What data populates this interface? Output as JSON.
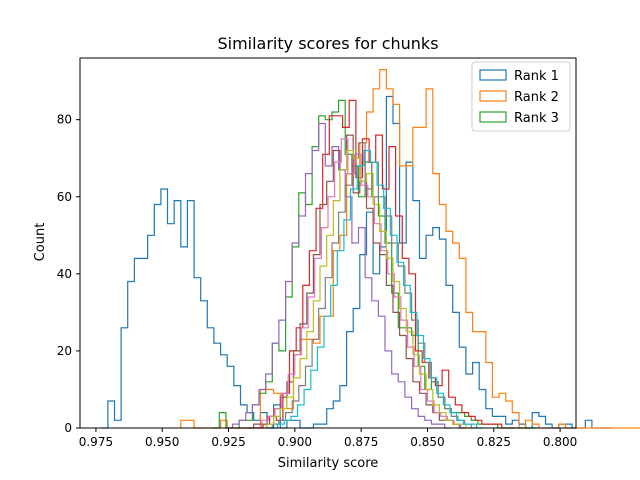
{
  "chart_data": {
    "type": "histogram",
    "title": "Similarity scores for chunks",
    "xlabel": "Similarity score",
    "ylabel": "Count",
    "x_inverted": true,
    "xlim": [
      0.981,
      0.794
    ],
    "ylim": [
      0,
      96
    ],
    "xticks": [
      0.975,
      0.95,
      0.925,
      0.9,
      0.875,
      0.85,
      0.825,
      0.8
    ],
    "xtick_labels": [
      "0.975",
      "0.950",
      "0.925",
      "0.900",
      "0.875",
      "0.850",
      "0.825",
      "0.800"
    ],
    "yticks": [
      0,
      20,
      40,
      60,
      80
    ],
    "ytick_labels": [
      "0",
      "20",
      "40",
      "60",
      "80"
    ],
    "legend": {
      "placement": "top-right",
      "entries": [
        {
          "name": "Rank 1",
          "color": "#1f77b4"
        },
        {
          "name": "Rank 2",
          "color": "#ff7f0e"
        },
        {
          "name": "Rank 3",
          "color": "#2ca02c"
        }
      ]
    },
    "series": [
      {
        "name": "Rank 1",
        "color": "#1f77b4",
        "x_start": 0.973,
        "bin_width": 0.0025,
        "counts": [
          0,
          7,
          2,
          26,
          38,
          44,
          44,
          50,
          58,
          62,
          53,
          59,
          47,
          59,
          39,
          33,
          26,
          22,
          19,
          16,
          11,
          6,
          4,
          2,
          4,
          0,
          6,
          0,
          2,
          2,
          0,
          0,
          1,
          1,
          5,
          7,
          11,
          25,
          31,
          45,
          56,
          40,
          47,
          86,
          79,
          48,
          69,
          59,
          44,
          50,
          52,
          49,
          37,
          30,
          21,
          14,
          17,
          10,
          5,
          3,
          3,
          1,
          2,
          1,
          0,
          4,
          3,
          1,
          0,
          1,
          1,
          0,
          0,
          2,
          0,
          0,
          0
        ]
      },
      {
        "name": "Rank 2",
        "color": "#ff7f0e",
        "x_start": 0.943,
        "bin_width": 0.0025,
        "counts": [
          2,
          2,
          0,
          0,
          0,
          0,
          2,
          0,
          0,
          0,
          0,
          0,
          10,
          10,
          9,
          8,
          5,
          19,
          23,
          23,
          22,
          29,
          29,
          46,
          50,
          66,
          66,
          74,
          82,
          88,
          93,
          88,
          84,
          68,
          68,
          78,
          78,
          88,
          66,
          58,
          51,
          48,
          44,
          30,
          25,
          25,
          17,
          8,
          9,
          7,
          4,
          0,
          2,
          1,
          0,
          0,
          0,
          1,
          0,
          0,
          0,
          0,
          0,
          0,
          0,
          0,
          0,
          0,
          0,
          0,
          0,
          0
        ]
      },
      {
        "name": "Rank 3",
        "color": "#2ca02c",
        "x_start": 0.931,
        "bin_width": 0.0025,
        "counts": [
          0,
          4,
          0,
          0,
          2,
          2,
          6,
          9,
          12,
          22,
          20,
          34,
          47,
          61,
          58,
          73,
          81,
          80,
          82,
          85,
          71,
          68,
          60,
          69,
          60,
          55,
          48,
          35,
          26,
          26,
          24,
          16,
          10,
          12,
          8,
          5,
          4,
          4,
          3,
          2,
          1,
          1,
          1,
          0,
          0,
          0,
          0,
          0,
          0
        ]
      },
      {
        "name": "",
        "color": "#d62728",
        "x_start": 0.922,
        "bin_width": 0.0025,
        "counts": [
          0,
          0,
          0,
          0,
          1,
          3,
          2,
          9,
          20,
          26,
          37,
          46,
          57,
          71,
          81,
          81,
          78,
          85,
          65,
          75,
          69,
          76,
          62,
          73,
          55,
          44,
          40,
          20,
          17,
          13,
          11,
          15,
          8,
          6,
          4,
          3,
          2,
          1,
          1,
          1,
          0,
          0
        ]
      },
      {
        "name": "",
        "color": "#9467bd",
        "x_start": 0.926,
        "bin_width": 0.0025,
        "counts": [
          0,
          1,
          2,
          4,
          6,
          10,
          14,
          22,
          28,
          38,
          48,
          55,
          66,
          72,
          79,
          68,
          73,
          67,
          60,
          48,
          52,
          39,
          33,
          29,
          20,
          14,
          12,
          8,
          5,
          3,
          2,
          1,
          1,
          0
        ]
      },
      {
        "name": "",
        "color": "#8c564b",
        "x_start": 0.918,
        "bin_width": 0.0025,
        "counts": [
          0,
          1,
          1,
          3,
          5,
          8,
          12,
          20,
          27,
          35,
          45,
          58,
          64,
          72,
          67,
          76,
          61,
          64,
          57,
          48,
          45,
          37,
          30,
          24,
          18,
          12,
          9,
          6,
          4,
          2,
          2,
          1,
          0
        ]
      },
      {
        "name": "",
        "color": "#e377c2",
        "x_start": 0.915,
        "bin_width": 0.0025,
        "counts": [
          0,
          2,
          3,
          5,
          9,
          14,
          19,
          26,
          34,
          44,
          52,
          60,
          69,
          75,
          66,
          71,
          63,
          60,
          53,
          46,
          40,
          34,
          28,
          21,
          16,
          10,
          7,
          4,
          3,
          2,
          1,
          0
        ]
      },
      {
        "name": "",
        "color": "#7f7f7f",
        "x_start": 0.911,
        "bin_width": 0.0025,
        "counts": [
          0,
          1,
          2,
          4,
          7,
          11,
          16,
          23,
          31,
          39,
          48,
          56,
          63,
          70,
          74,
          62,
          69,
          60,
          55,
          48,
          42,
          35,
          28,
          22,
          17,
          12,
          8,
          5,
          3,
          2,
          1,
          0
        ]
      },
      {
        "name": "",
        "color": "#bcbd22",
        "x_start": 0.913,
        "bin_width": 0.0025,
        "counts": [
          0,
          1,
          3,
          5,
          8,
          13,
          18,
          25,
          33,
          42,
          50,
          59,
          67,
          72,
          70,
          64,
          66,
          58,
          51,
          44,
          38,
          31,
          25,
          19,
          14,
          10,
          6,
          4,
          2,
          1,
          1,
          0
        ]
      },
      {
        "name": "",
        "color": "#17becf",
        "x_start": 0.909,
        "bin_width": 0.0025,
        "counts": [
          0,
          1,
          2,
          3,
          6,
          10,
          15,
          21,
          29,
          37,
          46,
          54,
          62,
          68,
          72,
          69,
          63,
          57,
          50,
          43,
          37,
          30,
          24,
          18,
          13,
          9,
          6,
          4,
          2,
          1,
          1,
          0
        ]
      }
    ]
  }
}
